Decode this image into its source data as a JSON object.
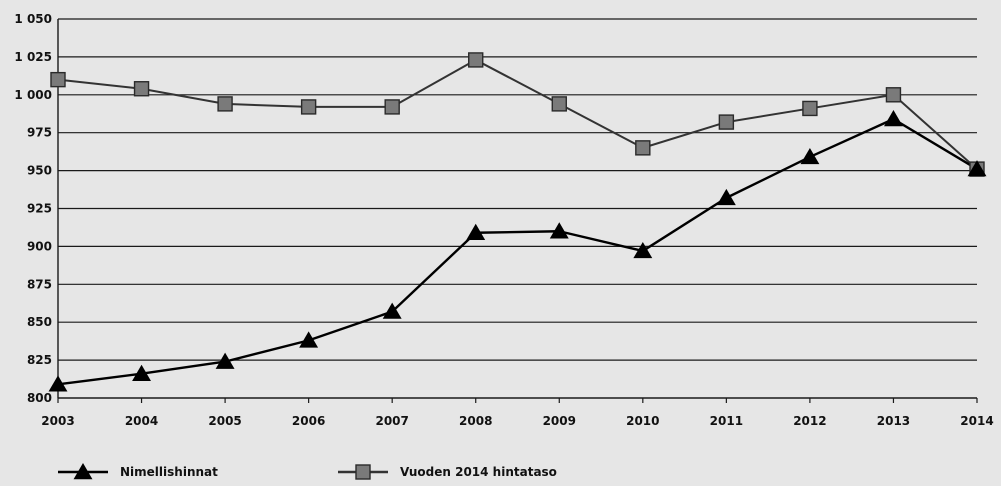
{
  "chart_data": {
    "type": "line",
    "x": [
      "2003",
      "2004",
      "2005",
      "2006",
      "2007",
      "2008",
      "2009",
      "2010",
      "2011",
      "2012",
      "2013",
      "2014"
    ],
    "ylim": [
      800,
      1050
    ],
    "yticks": [
      800,
      825,
      850,
      875,
      900,
      925,
      950,
      975,
      1000,
      1025,
      1050
    ],
    "ytick_labels": [
      "800",
      "825",
      "850",
      "875",
      "900",
      "925",
      "950",
      "975",
      "1 000",
      "1 025",
      "1 050"
    ],
    "grid": true,
    "legend_position": "bottom-left",
    "series": [
      {
        "name": "Nimellishinnat",
        "marker": "triangle",
        "color": "#000000",
        "values": [
          809,
          816,
          824,
          838,
          857,
          909,
          910,
          897,
          932,
          959,
          984,
          951
        ]
      },
      {
        "name": "Vuoden 2014 hintataso",
        "marker": "square",
        "color": "#333333",
        "marker_fill": "#7a7a7a",
        "values": [
          1010,
          1004,
          994,
          992,
          992,
          1023,
          994,
          965,
          982,
          991,
          1000,
          951
        ]
      }
    ]
  }
}
